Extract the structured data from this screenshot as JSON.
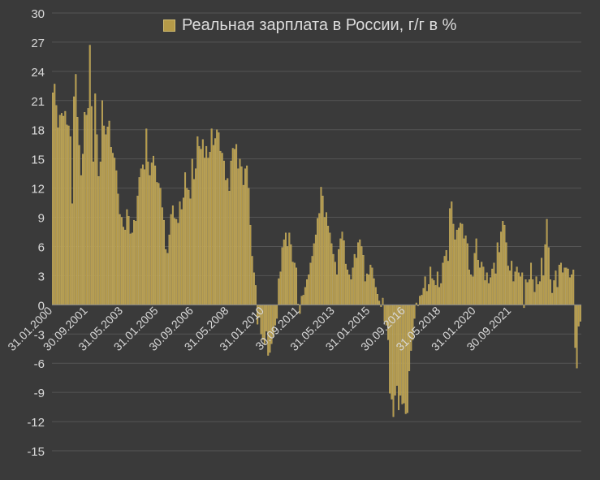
{
  "chart_data": {
    "type": "bar",
    "legend": {
      "label": "Реальная зарплата в России, г/г в %",
      "position": "top"
    },
    "xlabel": "",
    "ylabel": "",
    "ylim": [
      -15,
      30
    ],
    "yticks": [
      30,
      27,
      24,
      21,
      18,
      15,
      12,
      9,
      6,
      3,
      0,
      -3,
      -6,
      -9,
      -12,
      -15
    ],
    "xtick_labels": [
      "31.01.2000",
      "30.09.2001",
      "31.05.2003",
      "31.01.2005",
      "30.09.2006",
      "31.05.2008",
      "31.01.2010",
      "30.09.2011",
      "31.05.2013",
      "31.01.2015",
      "30.09.2016",
      "31.05.2018",
      "31.01.2020",
      "30.09.2021"
    ],
    "grid": "horizontal",
    "colors": {
      "bar": "#b59a48",
      "bar_edge": "#d8c27a",
      "background": "#3a3a3a",
      "grid": "#555555",
      "text": "#d9d9d9"
    },
    "series": [
      {
        "name": "Реальная зарплата в России, г/г в %",
        "start": "2000-01",
        "frequency": "monthly",
        "values": [
          21.8,
          22.7,
          20.5,
          18.2,
          19.5,
          19.7,
          19.4,
          19.9,
          18.5,
          18.4,
          17.3,
          10.4,
          21.4,
          23.7,
          19.3,
          16.4,
          13.3,
          15.5,
          19.8,
          19.5,
          20.2,
          26.7,
          20.4,
          14.7,
          21.7,
          17.5,
          13.2,
          14.7,
          21.0,
          18.4,
          17.5,
          18.3,
          18.9,
          16.2,
          15.6,
          15.1,
          13.8,
          11.4,
          9.3,
          9.0,
          8.0,
          7.7,
          9.8,
          9.1,
          7.3,
          7.4,
          8.7,
          8.6,
          11.2,
          13.1,
          14.0,
          14.4,
          13.9,
          18.1,
          14.7,
          13.3,
          14.6,
          15.3,
          14.3,
          12.6,
          12.5,
          12.0,
          10.0,
          8.7,
          5.7,
          5.3,
          7.2,
          9.3,
          10.2,
          8.9,
          8.8,
          8.4,
          10.6,
          9.8,
          11.0,
          13.6,
          12.0,
          11.8,
          10.9,
          15.0,
          12.9,
          14.0,
          17.3,
          16.3,
          16.0,
          17.0,
          15.1,
          16.3,
          15.1,
          15.7,
          18.1,
          16.4,
          17.1,
          18.0,
          17.7,
          15.8,
          15.6,
          14.8,
          12.8,
          13.0,
          11.7,
          14.8,
          16.1,
          16.0,
          16.5,
          14.0,
          15.0,
          14.2,
          12.3,
          14.0,
          14.3,
          12.0,
          8.2,
          5.0,
          3.3,
          2.0,
          -2.0,
          -1.3,
          -3.0,
          -3.6,
          -4.1,
          -2.7,
          -5.2,
          -4.9,
          -4.0,
          -3.3,
          -2.1,
          -1.4,
          2.7,
          3.4,
          5.9,
          6.7,
          7.4,
          6.0,
          7.4,
          6.2,
          4.4,
          4.3,
          3.8,
          0.1,
          -0.9,
          0.9,
          1.0,
          1.8,
          2.6,
          3.1,
          4.3,
          5.0,
          6.3,
          7.2,
          8.9,
          9.4,
          12.1,
          11.2,
          9.0,
          9.5,
          8.1,
          7.4,
          6.3,
          5.2,
          4.4,
          3.1,
          5.7,
          6.8,
          7.5,
          6.6,
          4.2,
          3.6,
          3.1,
          2.6,
          3.8,
          5.2,
          4.8,
          6.4,
          6.7,
          6.0,
          5.1,
          2.4,
          3.2,
          3.1,
          4.1,
          3.8,
          2.7,
          1.8,
          1.1,
          0.4,
          -0.2,
          0.7,
          -1.7,
          -2.1,
          -3.6,
          -9.1,
          -9.7,
          -11.5,
          -9.3,
          -8.3,
          -10.8,
          -9.3,
          -10.2,
          -10.1,
          -11.2,
          -11.1,
          -6.8,
          -4.7,
          -3.6,
          -1.4,
          0.2,
          -0.1,
          0.9,
          1.0,
          1.7,
          2.9,
          1.4,
          2.1,
          3.9,
          2.7,
          2.5,
          2.0,
          3.4,
          1.8,
          2.2,
          4.3,
          5.0,
          5.6,
          4.5,
          9.9,
          10.6,
          8.3,
          6.7,
          7.7,
          7.9,
          8.4,
          8.3,
          6.8,
          7.1,
          6.3,
          3.6,
          3.1,
          2.9,
          5.3,
          6.8,
          4.6,
          3.8,
          4.4,
          3.9,
          2.5,
          3.3,
          2.2,
          2.8,
          3.7,
          4.3,
          3.2,
          6.4,
          5.4,
          7.5,
          8.6,
          8.2,
          6.4,
          4.0,
          3.5,
          4.5,
          2.4,
          3.4,
          3.9,
          3.3,
          2.9,
          3.3,
          -0.3,
          2.6,
          2.3,
          2.6,
          4.3,
          2.6,
          1.3,
          2.9,
          2.1,
          2.4,
          4.8,
          3.0,
          6.2,
          8.8,
          5.9,
          2.6,
          1.2,
          2.5,
          3.5,
          1.8,
          4.1,
          4.3,
          3.3,
          3.8,
          3.8,
          3.7,
          2.8,
          3.1,
          3.6,
          -4.4,
          -6.5,
          -2.2,
          -1.7
        ]
      }
    ]
  }
}
